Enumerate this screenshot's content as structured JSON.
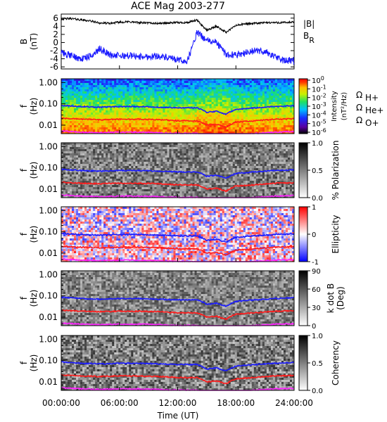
{
  "title": "ACE Mag 2003-277",
  "colors": {
    "black": "#000000",
    "blue": "#1a1aff",
    "red": "#ff1a1a",
    "magenta": "#ff22ff"
  },
  "x_axis": {
    "label": "Time (UT)",
    "ticks": [
      "00:00:00",
      "06:00:00",
      "12:00:00",
      "18:00:00",
      "24:00:00"
    ]
  },
  "panel1": {
    "ylabel": "B",
    "yunit": "(nT)",
    "yticks": [
      "6",
      "4",
      "2",
      "0",
      "-2",
      "-4",
      "-6"
    ],
    "legend_b": "|B|",
    "legend_br": "B",
    "legend_br_sub": "R"
  },
  "f_axis": {
    "label": "f",
    "unit": "(Hz)",
    "ticks": [
      "1.00",
      "0.10",
      "0.01"
    ]
  },
  "panel2": {
    "cbar_ticks": [
      {
        "base": "10",
        "exp": "0"
      },
      {
        "base": "10",
        "exp": "-1"
      },
      {
        "base": "10",
        "exp": "-2"
      },
      {
        "base": "10",
        "exp": "-3"
      },
      {
        "base": "10",
        "exp": "-4"
      },
      {
        "base": "10",
        "exp": "-5"
      },
      {
        "base": "10",
        "exp": "-6"
      }
    ],
    "cbar_label": "Intensity",
    "cbar_unit": "(nT²/Hz)",
    "omega": "Ω",
    "legend_h": "H+",
    "legend_he": "He+",
    "legend_o": "O+"
  },
  "panel3": {
    "cbar_ticks": [
      "1.0",
      "0.5",
      "0.0"
    ],
    "cbar_label": "% Polarization"
  },
  "panel4": {
    "cbar_ticks": [
      "1",
      "0",
      "-1"
    ],
    "cbar_label": "Ellipticity"
  },
  "panel5": {
    "cbar_ticks": [
      "90",
      "60",
      "30",
      "0"
    ],
    "cbar_label": "k dot B",
    "cbar_unit": "(Deg)"
  },
  "panel6": {
    "cbar_ticks": [
      "1.0",
      "0.5",
      "0.0"
    ],
    "cbar_label": "Coherency"
  },
  "chart_data": [
    {
      "type": "line",
      "title": "ACE Mag 2003-277",
      "xlabel": "Time (UT)",
      "ylabel": "B (nT)",
      "xlim": [
        0,
        24
      ],
      "ylim": [
        -6.5,
        7
      ],
      "x": [
        0,
        1,
        2,
        3,
        4,
        5,
        6,
        7,
        8,
        9,
        10,
        11,
        12,
        13,
        14,
        15,
        16,
        17,
        18,
        19,
        20,
        21,
        22,
        23,
        24
      ],
      "series": [
        {
          "name": "|B|",
          "values": [
            5.8,
            5.9,
            5.6,
            5.3,
            4.8,
            4.7,
            5.0,
            5.1,
            4.9,
            4.8,
            4.7,
            4.8,
            4.9,
            4.9,
            5.5,
            3.0,
            4.0,
            2.5,
            4.2,
            4.6,
            4.7,
            4.9,
            4.9,
            4.9,
            5.0
          ]
        },
        {
          "name": "B_R",
          "values": [
            -2.5,
            -3.2,
            -4.0,
            -3.5,
            -1.5,
            -3.0,
            -3.3,
            -3.2,
            -3.5,
            -3.5,
            -3.3,
            -3.8,
            -4.3,
            -4.6,
            2.5,
            0.5,
            0.0,
            -3.0,
            -3.0,
            -2.5,
            -2.0,
            -2.2,
            -3.5,
            -4.5,
            -4.5
          ]
        }
      ]
    },
    {
      "type": "heatmap",
      "xlabel": "Time (UT)",
      "ylabel": "f (Hz)",
      "yscale": "log",
      "ylim": [
        0.004,
        1.5
      ],
      "colorbar": "Intensity (nT²/Hz)",
      "clim": [
        1e-06,
        1
      ],
      "x": [
        0,
        2,
        4,
        6,
        8,
        10,
        12,
        14,
        15,
        16,
        17,
        18,
        20,
        22,
        24
      ],
      "series": [
        {
          "name": "ΩH+",
          "values": [
            0.085,
            0.075,
            0.07,
            0.075,
            0.075,
            0.07,
            0.065,
            0.065,
            0.04,
            0.045,
            0.032,
            0.055,
            0.065,
            0.075,
            0.08
          ]
        },
        {
          "name": "ΩHe+",
          "values": [
            0.021,
            0.019,
            0.018,
            0.019,
            0.019,
            0.018,
            0.016,
            0.016,
            0.01,
            0.011,
            0.008,
            0.014,
            0.016,
            0.019,
            0.02
          ]
        },
        {
          "name": "ΩO+",
          "values": [
            0.0053,
            0.0047,
            0.0044,
            0.0047,
            0.0047,
            0.0044,
            0.0041,
            0.0041,
            0.0025,
            0.0028,
            0.002,
            0.0034,
            0.0041,
            0.0047,
            0.005
          ]
        }
      ]
    },
    {
      "type": "heatmap",
      "ylabel": "f (Hz)",
      "yscale": "log",
      "colorbar": "% Polarization",
      "clim": [
        0,
        1
      ]
    },
    {
      "type": "heatmap",
      "ylabel": "f (Hz)",
      "yscale": "log",
      "colorbar": "Ellipticity",
      "clim": [
        -1,
        1
      ]
    },
    {
      "type": "heatmap",
      "ylabel": "f (Hz)",
      "yscale": "log",
      "colorbar": "k dot B (Deg)",
      "clim": [
        0,
        90
      ]
    },
    {
      "type": "heatmap",
      "ylabel": "f (Hz)",
      "yscale": "log",
      "colorbar": "Coherency",
      "clim": [
        0,
        1
      ]
    }
  ]
}
